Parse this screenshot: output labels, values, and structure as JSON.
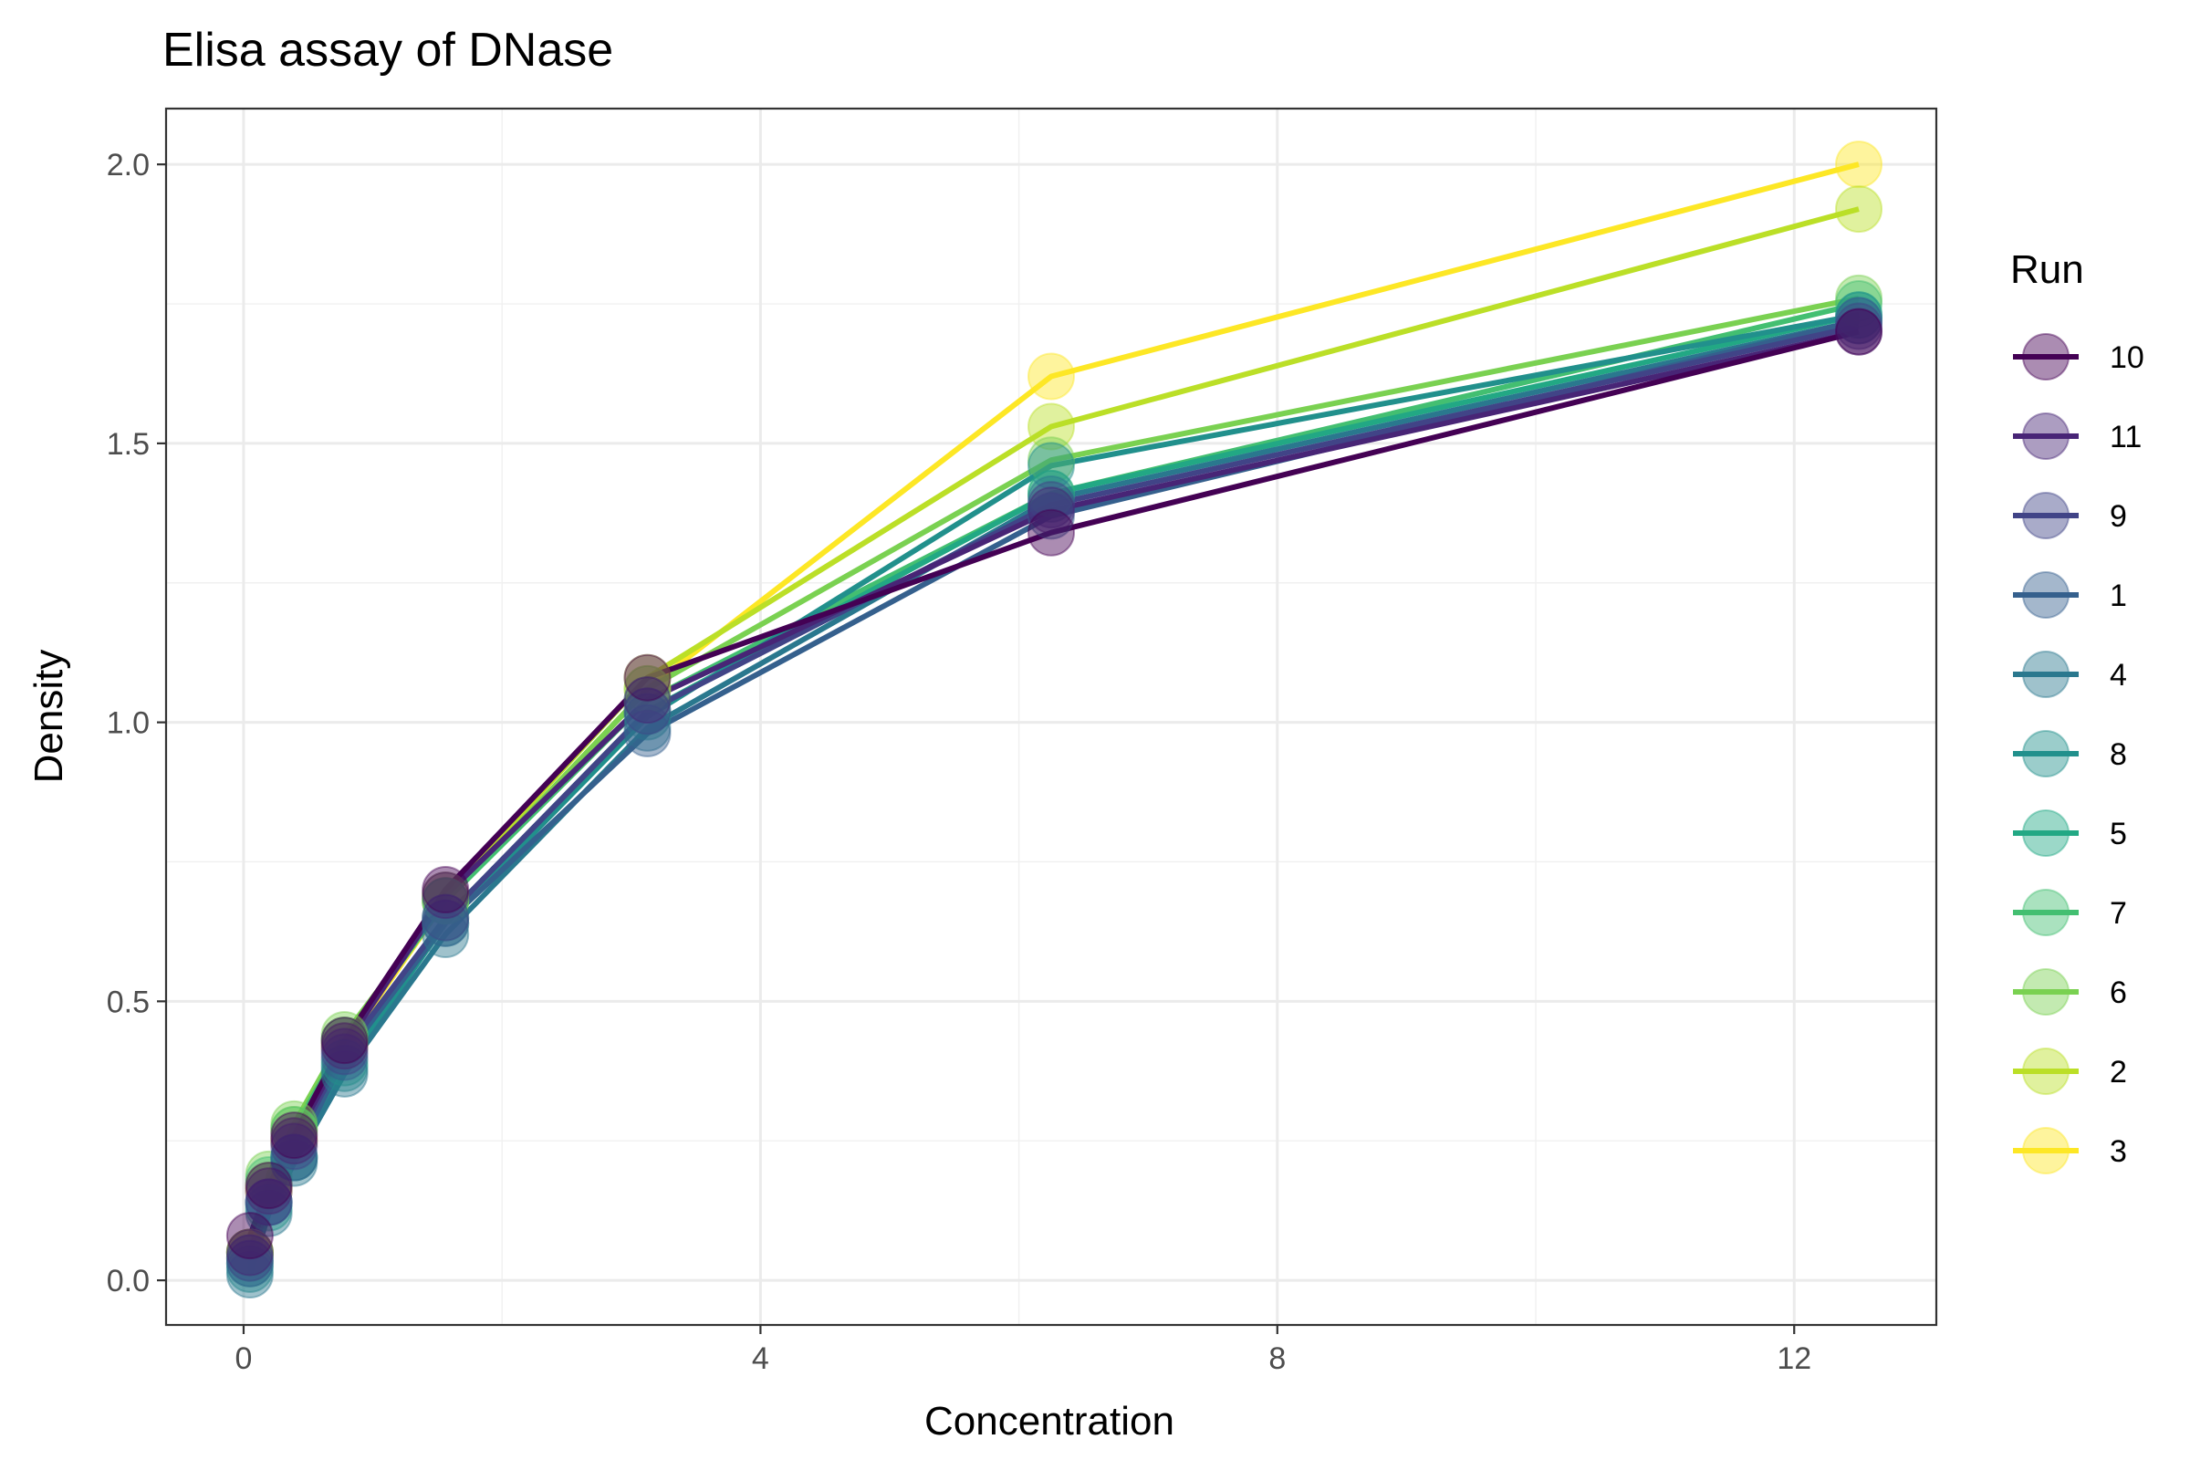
{
  "chart_data": {
    "type": "line",
    "title": "Elisa assay of DNase",
    "xlabel": "Concentration",
    "ylabel": "Density",
    "xlim": [
      -0.6,
      13.1
    ],
    "ylim": [
      -0.08,
      2.1
    ],
    "x_ticks": [
      0,
      4,
      8,
      12
    ],
    "x_tick_labels": [
      "0",
      "4",
      "8",
      "12"
    ],
    "y_ticks": [
      0.0,
      0.5,
      1.0,
      1.5,
      2.0
    ],
    "y_tick_labels": [
      "0.0",
      "0.5",
      "1.0",
      "1.5",
      "2.0"
    ],
    "x": [
      0.04882812,
      0.1953125,
      0.390625,
      0.78125,
      1.5625,
      3.125,
      6.25,
      12.5
    ],
    "grid": true,
    "legend_title": "Run",
    "legend_position": "right",
    "series": [
      {
        "name": "10",
        "color": "#440154",
        "values": [
          0.08,
          0.17,
          0.26,
          0.43,
          0.7,
          1.08,
          1.34,
          1.7
        ]
      },
      {
        "name": "11",
        "color": "#482576",
        "values": [
          0.05,
          0.16,
          0.25,
          0.42,
          0.69,
          1.04,
          1.38,
          1.7
        ]
      },
      {
        "name": "9",
        "color": "#414487",
        "values": [
          0.04,
          0.14,
          0.24,
          0.41,
          0.65,
          1.02,
          1.39,
          1.71
        ]
      },
      {
        "name": "1",
        "color": "#35608D",
        "values": [
          0.03,
          0.14,
          0.22,
          0.4,
          0.64,
          0.98,
          1.37,
          1.72
        ]
      },
      {
        "name": "4",
        "color": "#2A788E",
        "values": [
          0.01,
          0.12,
          0.21,
          0.37,
          0.62,
          0.99,
          1.4,
          1.72
        ]
      },
      {
        "name": "8",
        "color": "#21908C",
        "values": [
          0.02,
          0.14,
          0.22,
          0.38,
          0.64,
          1.01,
          1.46,
          1.73
        ]
      },
      {
        "name": "5",
        "color": "#22A884",
        "values": [
          0.03,
          0.13,
          0.22,
          0.39,
          0.65,
          1.02,
          1.41,
          1.73
        ]
      },
      {
        "name": "7",
        "color": "#43BF71",
        "values": [
          0.04,
          0.18,
          0.27,
          0.43,
          0.68,
          1.04,
          1.41,
          1.75
        ]
      },
      {
        "name": "6",
        "color": "#7AD151",
        "values": [
          0.05,
          0.19,
          0.28,
          0.44,
          0.68,
          1.06,
          1.47,
          1.76
        ]
      },
      {
        "name": "2",
        "color": "#BBDF27",
        "values": [
          0.05,
          0.17,
          0.27,
          0.43,
          0.69,
          1.08,
          1.53,
          1.92
        ]
      },
      {
        "name": "3",
        "color": "#FDE725",
        "values": [
          0.05,
          0.16,
          0.25,
          0.42,
          0.68,
          1.06,
          1.62,
          2.0
        ]
      }
    ]
  }
}
